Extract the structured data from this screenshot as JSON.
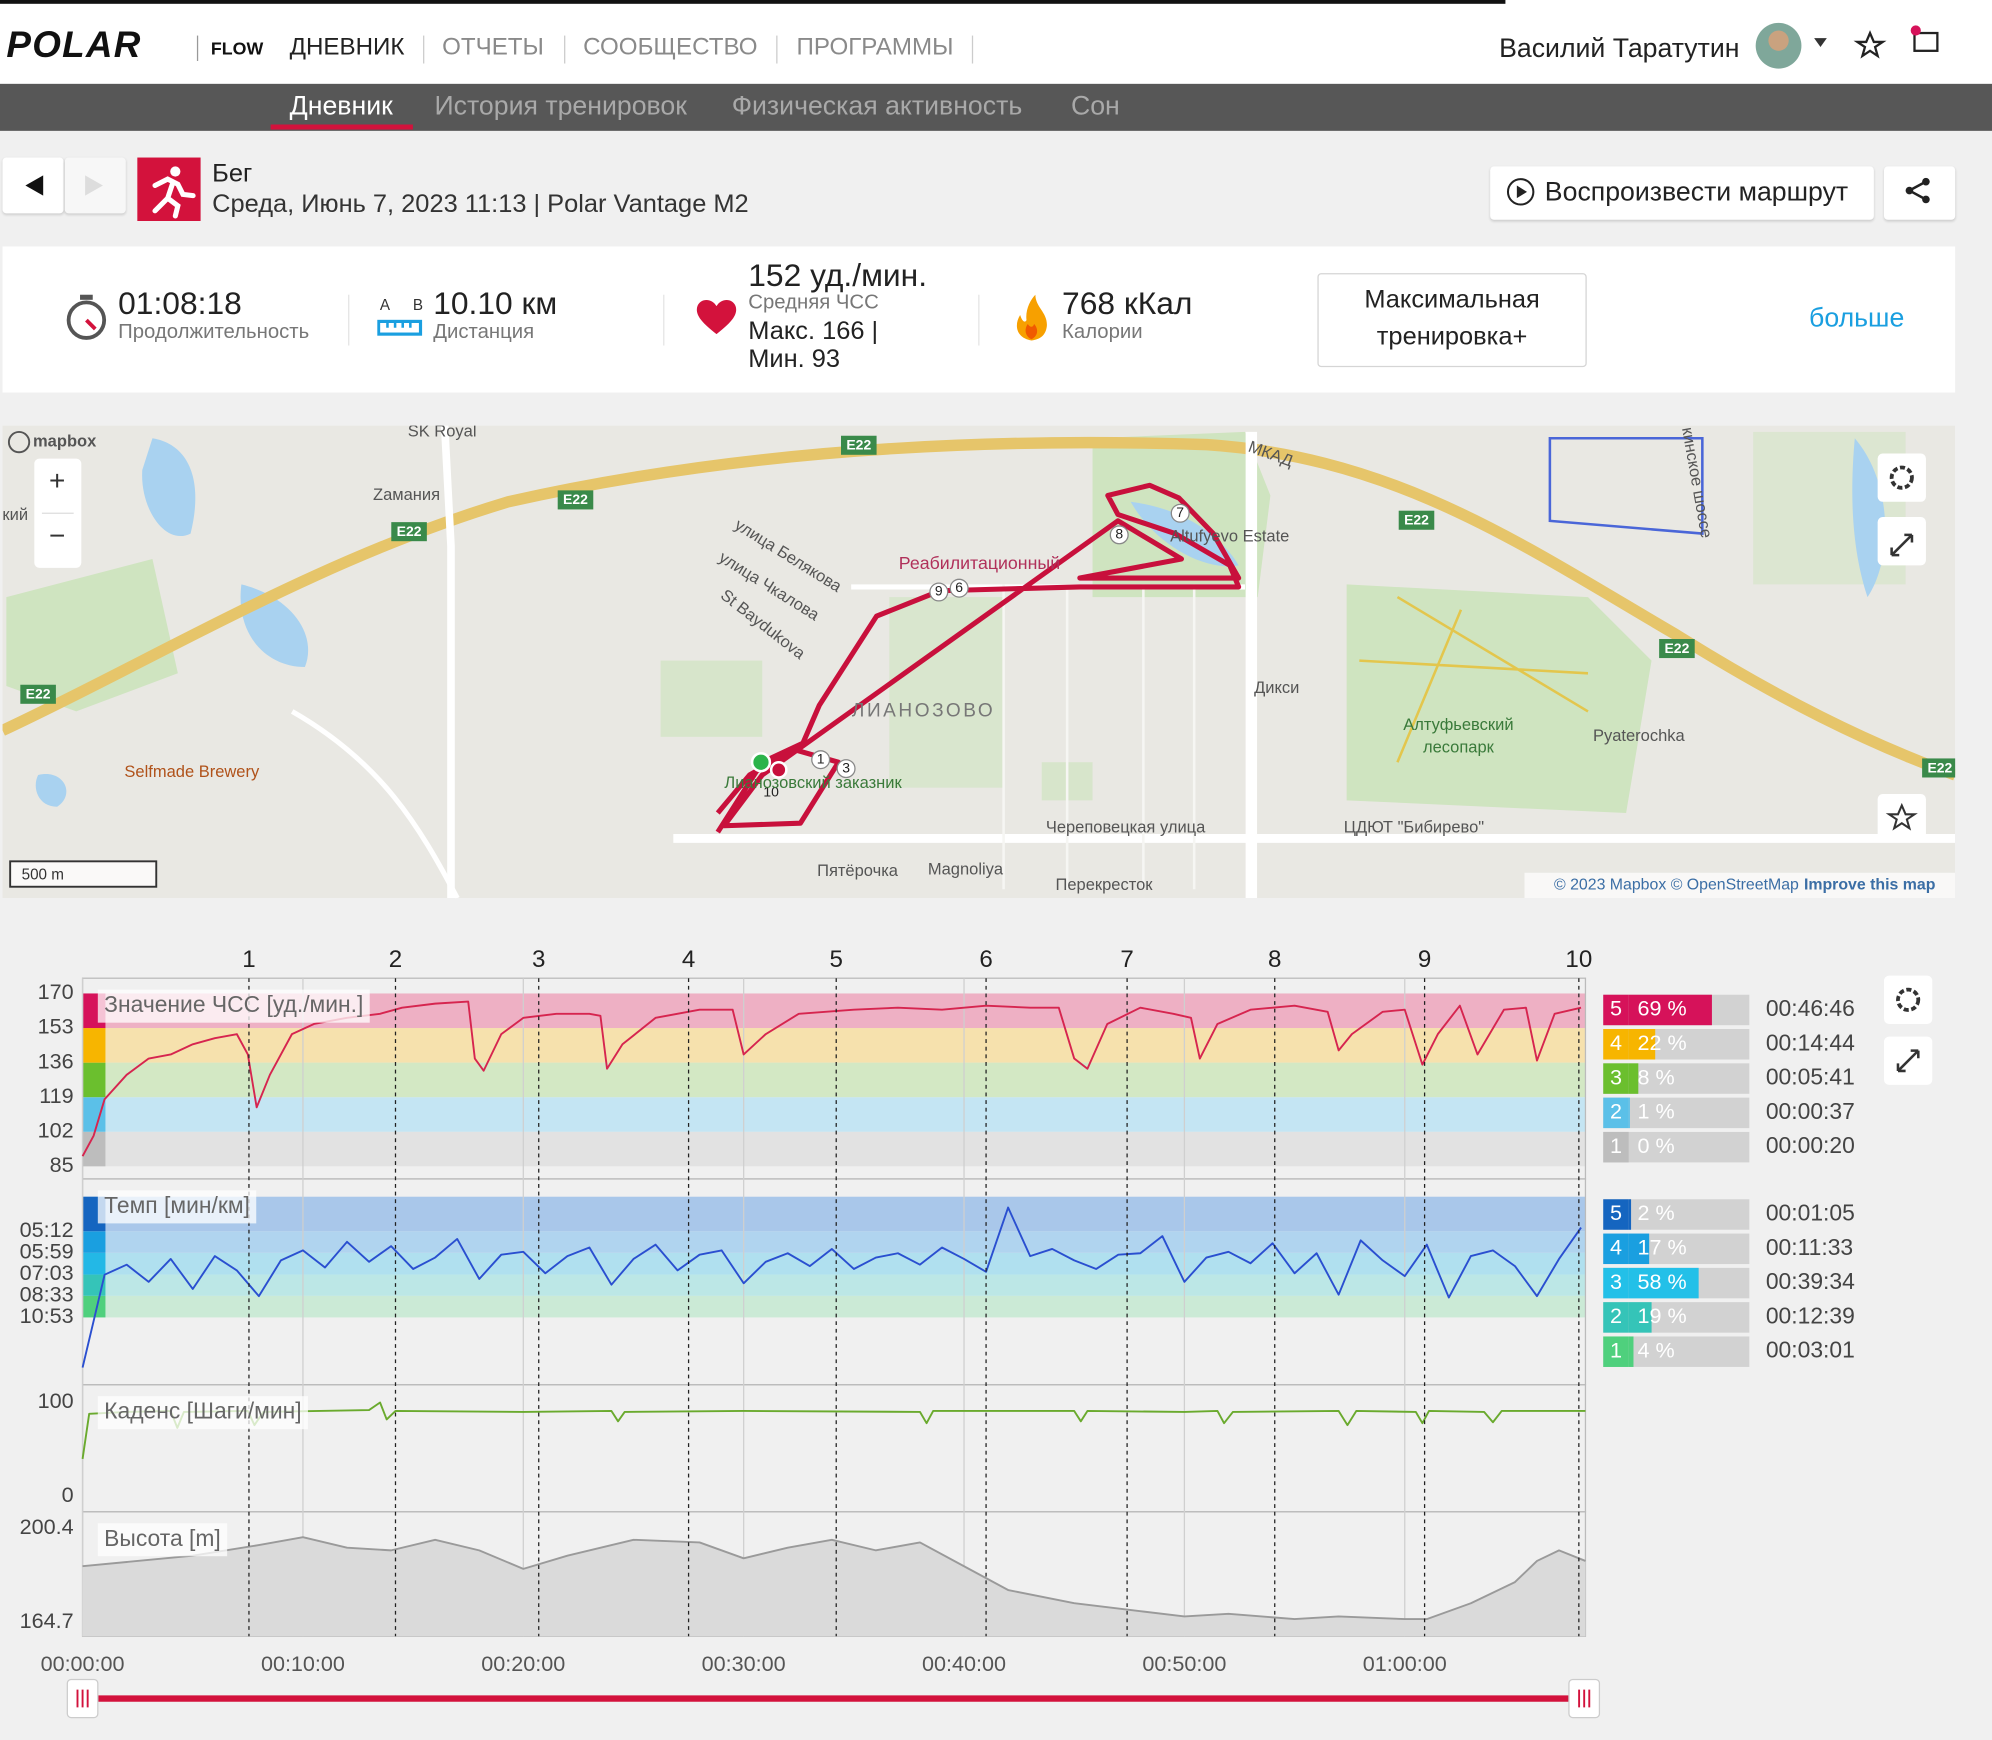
{
  "nav": {
    "logo": "POLAR",
    "flow": "FLOW",
    "items": [
      "ДНЕВНИК",
      "ОТЧЕТЫ",
      "СООБЩЕСТВО",
      "ПРОГРАММЫ"
    ],
    "user": "Василий Таратутин"
  },
  "subnav": [
    "Дневник",
    "История тренировок",
    "Физическая активность",
    "Сон"
  ],
  "workout": {
    "sport": "Бег",
    "datetime": "Среда, Июнь 7, 2023 11:13 | Polar Vantage M2",
    "play": "Воспроизвести маршрут"
  },
  "summary": {
    "duration": "01:08:18",
    "duration_label": "Продолжительность",
    "a": "A",
    "b": "B",
    "distance": "10.10 км",
    "distance_label": "Дистанция",
    "hr_avg": "152 уд./мин.",
    "hr_avg_label": "Средняя ЧСС",
    "hr_max": "Макс. 166  |",
    "hr_min": "Мин. 93",
    "calories": "768 кКал",
    "calories_label": "Калории",
    "benefit": [
      "Максимальная",
      "тренировка+"
    ],
    "more": "больше"
  },
  "map": {
    "brand": "mapbox",
    "zoom": [
      "+",
      "−"
    ],
    "scale": "500 m",
    "attribution": "© 2023 Mapbox © OpenStreetMap",
    "improve": "Improve this map",
    "labels": [
      "SK Royal",
      "Zамания",
      "E22",
      "E22",
      "E22",
      "E22",
      "E22",
      "E22",
      "E22",
      "МКАД",
      "улица Белякова",
      "улица Чкалова",
      "St Baydukova",
      "Реабилитационный",
      "Altufyevo Estate",
      "ЛИАНОЗОВО",
      "Дикси",
      "Алтуфьевский",
      "лесопарк",
      "Pyaterochka",
      "Selfmade Brewery",
      "Лианозовский заказник",
      "Череповецкая улица",
      "ЦДЮТ \"Бибирево\"",
      "Пятёрочка",
      "Magnoliya",
      "Перекресток",
      "кинское шоссе",
      "кий"
    ],
    "route_markers": [
      "7",
      "8",
      "9",
      "6",
      "1",
      "3",
      "10"
    ]
  },
  "chart_data": [
    {
      "type": "line",
      "title": "Значение ЧСС [уд./мин.]",
      "color": "#d6254f",
      "xlim": [
        0,
        68.2
      ],
      "ylim": [
        78.8,
        177.5
      ],
      "yticks": [
        85,
        102,
        119,
        136,
        153,
        170
      ],
      "zone_colors": [
        "#e2e2e2",
        "#c4e5f3",
        "#d3e8c4",
        "#f6e1ad",
        "#eeb0c4"
      ],
      "zone_strip_colors": [
        "#bdbdbd",
        "#5bc0e8",
        "#6bbf2e",
        "#f7b500",
        "#d6125a"
      ],
      "laps": [
        {
          "value": 7.55,
          "label": "1"
        },
        {
          "value": 14.2,
          "label": "2"
        },
        {
          "value": 20.7,
          "label": "3"
        },
        {
          "value": 27.5,
          "label": "4"
        },
        {
          "value": 34.2,
          "label": "5"
        },
        {
          "value": 41.0,
          "label": "6"
        },
        {
          "value": 47.4,
          "label": "7"
        },
        {
          "value": 54.1,
          "label": "8"
        },
        {
          "value": 60.9,
          "label": "9"
        },
        {
          "value": 67.9,
          "label": "10"
        }
      ],
      "x": [
        0,
        0.5,
        1,
        2,
        3,
        4,
        5,
        6,
        7,
        7.5,
        7.9,
        8.5,
        9.5,
        10.5,
        12,
        13.5,
        14.5,
        16,
        17.5,
        17.8,
        18.2,
        19,
        20,
        21.5,
        23,
        23.5,
        23.8,
        24.5,
        26,
        28,
        29.5,
        30,
        31,
        32.5,
        35,
        37,
        39,
        40,
        41,
        43,
        44.3,
        45,
        45.6,
        46.5,
        48,
        49.5,
        50.3,
        50.7,
        51.5,
        53,
        55,
        56.5,
        57,
        57.6,
        59,
        60,
        60.8,
        61.5,
        62.5,
        63.3,
        64.5,
        65.5,
        66,
        66.8,
        68
      ],
      "values": [
        90,
        100,
        118,
        130,
        138,
        140,
        145,
        148,
        150,
        140,
        114,
        130,
        150,
        155,
        158,
        160,
        163,
        165,
        166,
        138,
        132,
        150,
        158,
        160,
        160,
        159,
        133,
        145,
        158,
        162,
        162,
        140,
        150,
        160,
        162,
        163,
        162,
        163,
        164,
        163,
        163,
        138,
        133,
        155,
        163,
        160,
        158,
        138,
        155,
        162,
        164,
        161,
        142,
        150,
        161,
        162,
        135,
        150,
        164,
        140,
        162,
        163,
        137,
        160,
        163
      ]
    },
    {
      "type": "line",
      "title": "Темп [мин/км]",
      "color": "#2a4fd0",
      "xlim": [
        0,
        68.2
      ],
      "ylim": [
        0.8,
        15.2
      ],
      "yticks": [
        {
          "value": 5.51,
          "label": "10:53"
        },
        {
          "value": 7.02,
          "label": "08:33"
        },
        {
          "value": 8.51,
          "label": "07:03"
        },
        {
          "value": 10.03,
          "label": "05:59"
        },
        {
          "value": 11.54,
          "label": "05:12"
        }
      ],
      "zone_colors": [
        "#cbead6",
        "#bce7e6",
        "#b0e0ef",
        "#b0d4ef",
        "#a9c7ea"
      ],
      "zone_strip_colors": [
        "#4fd07d",
        "#35c4b8",
        "#23b8e6",
        "#1a9fe0",
        "#1565c0"
      ],
      "x": [
        0,
        1,
        2,
        3,
        4,
        5,
        6,
        7,
        8,
        9,
        10,
        11,
        12,
        13,
        14,
        15,
        16,
        17,
        18,
        19,
        20,
        21,
        22,
        23,
        24,
        25,
        26,
        27,
        28,
        29,
        30,
        31,
        32,
        33,
        34,
        35,
        36,
        37,
        38,
        39,
        40,
        41,
        42,
        43,
        44,
        45,
        46,
        47,
        48,
        49,
        50,
        51,
        52,
        53,
        54,
        55,
        56,
        57,
        58,
        59,
        60,
        61,
        62,
        63,
        64,
        65,
        66,
        67,
        68
      ],
      "values": [
        2.0,
        8.5,
        9.2,
        8.0,
        9.6,
        7.5,
        9.8,
        8.8,
        7.0,
        9.5,
        10.2,
        9.0,
        10.8,
        9.4,
        10.5,
        8.9,
        9.7,
        11.0,
        8.2,
        9.9,
        10.1,
        8.6,
        9.8,
        10.4,
        7.8,
        9.6,
        10.6,
        8.8,
        9.9,
        10.2,
        7.9,
        9.4,
        10.0,
        9.1,
        10.3,
        8.9,
        9.7,
        10.0,
        9.2,
        10.4,
        9.6,
        8.7,
        13.2,
        9.8,
        10.3,
        9.5,
        8.9,
        9.9,
        10.0,
        11.2,
        8.0,
        9.7,
        10.1,
        9.3,
        10.7,
        8.6,
        10.0,
        7.1,
        10.9,
        9.5,
        8.4,
        10.6,
        6.9,
        9.8,
        10.2,
        9.1,
        7.0,
        9.6,
        11.8
      ]
    },
    {
      "type": "line",
      "title": "Каденс [Шаги/мин]",
      "color": "#6aaa2e",
      "xlim": [
        0,
        68.2
      ],
      "ylim": [
        -16.2,
        118.9
      ],
      "yticks": [
        0,
        100
      ],
      "x": [
        0,
        0.3,
        2,
        4,
        4.3,
        4.6,
        7.5,
        7.8,
        8.2,
        13,
        13.5,
        13.8,
        14.2,
        20,
        24,
        24.3,
        24.6,
        30,
        38,
        38.3,
        38.6,
        45,
        45.3,
        45.6,
        50,
        51.5,
        51.8,
        52.2,
        57,
        57.4,
        57.8,
        60.5,
        60.8,
        61.1,
        63.6,
        64,
        64.4,
        68.2
      ],
      "values": [
        40,
        88,
        90,
        91,
        73,
        90,
        91,
        76,
        90,
        92,
        100,
        82,
        91,
        90,
        91,
        80,
        90,
        91,
        90,
        78,
        91,
        91,
        80,
        91,
        90,
        91,
        78,
        90,
        91,
        76,
        91,
        90,
        78,
        91,
        90,
        79,
        91,
        91
      ]
    },
    {
      "type": "area",
      "title": "Высота [m]",
      "color": "#9a9a9a",
      "fill": "#dadada",
      "xlim": [
        0,
        68.2
      ],
      "ylim": [
        159.5,
        206.6
      ],
      "yticks": [
        164.7,
        200.4
      ],
      "xticks": [
        {
          "value": 0,
          "label": "00:00:00"
        },
        {
          "value": 10,
          "label": "00:10:00"
        },
        {
          "value": 20,
          "label": "00:20:00"
        },
        {
          "value": 30,
          "label": "00:30:00"
        },
        {
          "value": 40,
          "label": "00:40:00"
        },
        {
          "value": 50,
          "label": "00:50:00"
        },
        {
          "value": 60,
          "label": "01:00:00"
        }
      ],
      "x": [
        0,
        5,
        8,
        10,
        12,
        14,
        16,
        18,
        20,
        22,
        25,
        28,
        30,
        32,
        34,
        36,
        38,
        40,
        42,
        45,
        48,
        50,
        52,
        55,
        57,
        60,
        61,
        63,
        65,
        66,
        67,
        68.2
      ],
      "values": [
        186,
        190,
        194,
        197,
        193,
        192,
        196,
        192,
        185,
        190,
        196,
        195,
        189,
        193,
        196,
        192,
        195,
        186,
        177,
        172,
        169,
        167,
        168,
        166,
        167,
        166,
        166,
        172,
        180,
        188,
        192,
        188
      ]
    }
  ],
  "hr_zones": {
    "numbers": [
      5,
      4,
      3,
      2,
      1
    ],
    "values": [
      69,
      22,
      8,
      1,
      0
    ],
    "value_labels": [
      "69 %",
      "22 %",
      "8 %",
      "1 %",
      "0 %"
    ],
    "times": [
      "00:46:46",
      "00:14:44",
      "00:05:41",
      "00:00:37",
      "00:00:20"
    ],
    "colors": [
      "#d6125a",
      "#f7b500",
      "#6bbf2e",
      "#5bc0e8",
      "#bdbdbd"
    ]
  },
  "pace_zones": {
    "numbers": [
      5,
      4,
      3,
      2,
      1
    ],
    "values": [
      2,
      17,
      58,
      19,
      4
    ],
    "value_labels": [
      "2 %",
      "17 %",
      "58 %",
      "19 %",
      "4 %"
    ],
    "times": [
      "00:01:05",
      "00:11:33",
      "00:39:34",
      "00:12:39",
      "00:03:01"
    ],
    "colors": [
      "#1565c0",
      "#1a9fe0",
      "#23c0e8",
      "#35c4b8",
      "#4fd07d"
    ]
  }
}
